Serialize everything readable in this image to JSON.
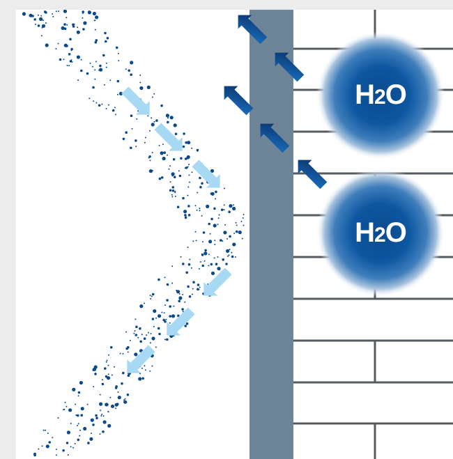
{
  "colors": {
    "background": "#ffffff",
    "frame_bg": "#ececec",
    "membrane": "#6e8497",
    "brick_lines": "#555a5e",
    "molecule_core": "#0b4f96",
    "molecule_edge": "#dfe8f2",
    "arrow_out": "#0a3a73",
    "arrow_in": "#a7d9f5",
    "particles": "#0b4a8a"
  },
  "molecules": [
    {
      "name": "water-molecule-top",
      "formula_main": "H",
      "formula_sub": "2",
      "formula_tail": "O"
    },
    {
      "name": "water-molecule-bottom",
      "formula_main": "H",
      "formula_sub": "2",
      "formula_tail": "O"
    }
  ],
  "icons": {
    "outgoing_arrow": "arrow-up-left-icon",
    "incoming_arrow": "arrow-down-right-icon"
  }
}
